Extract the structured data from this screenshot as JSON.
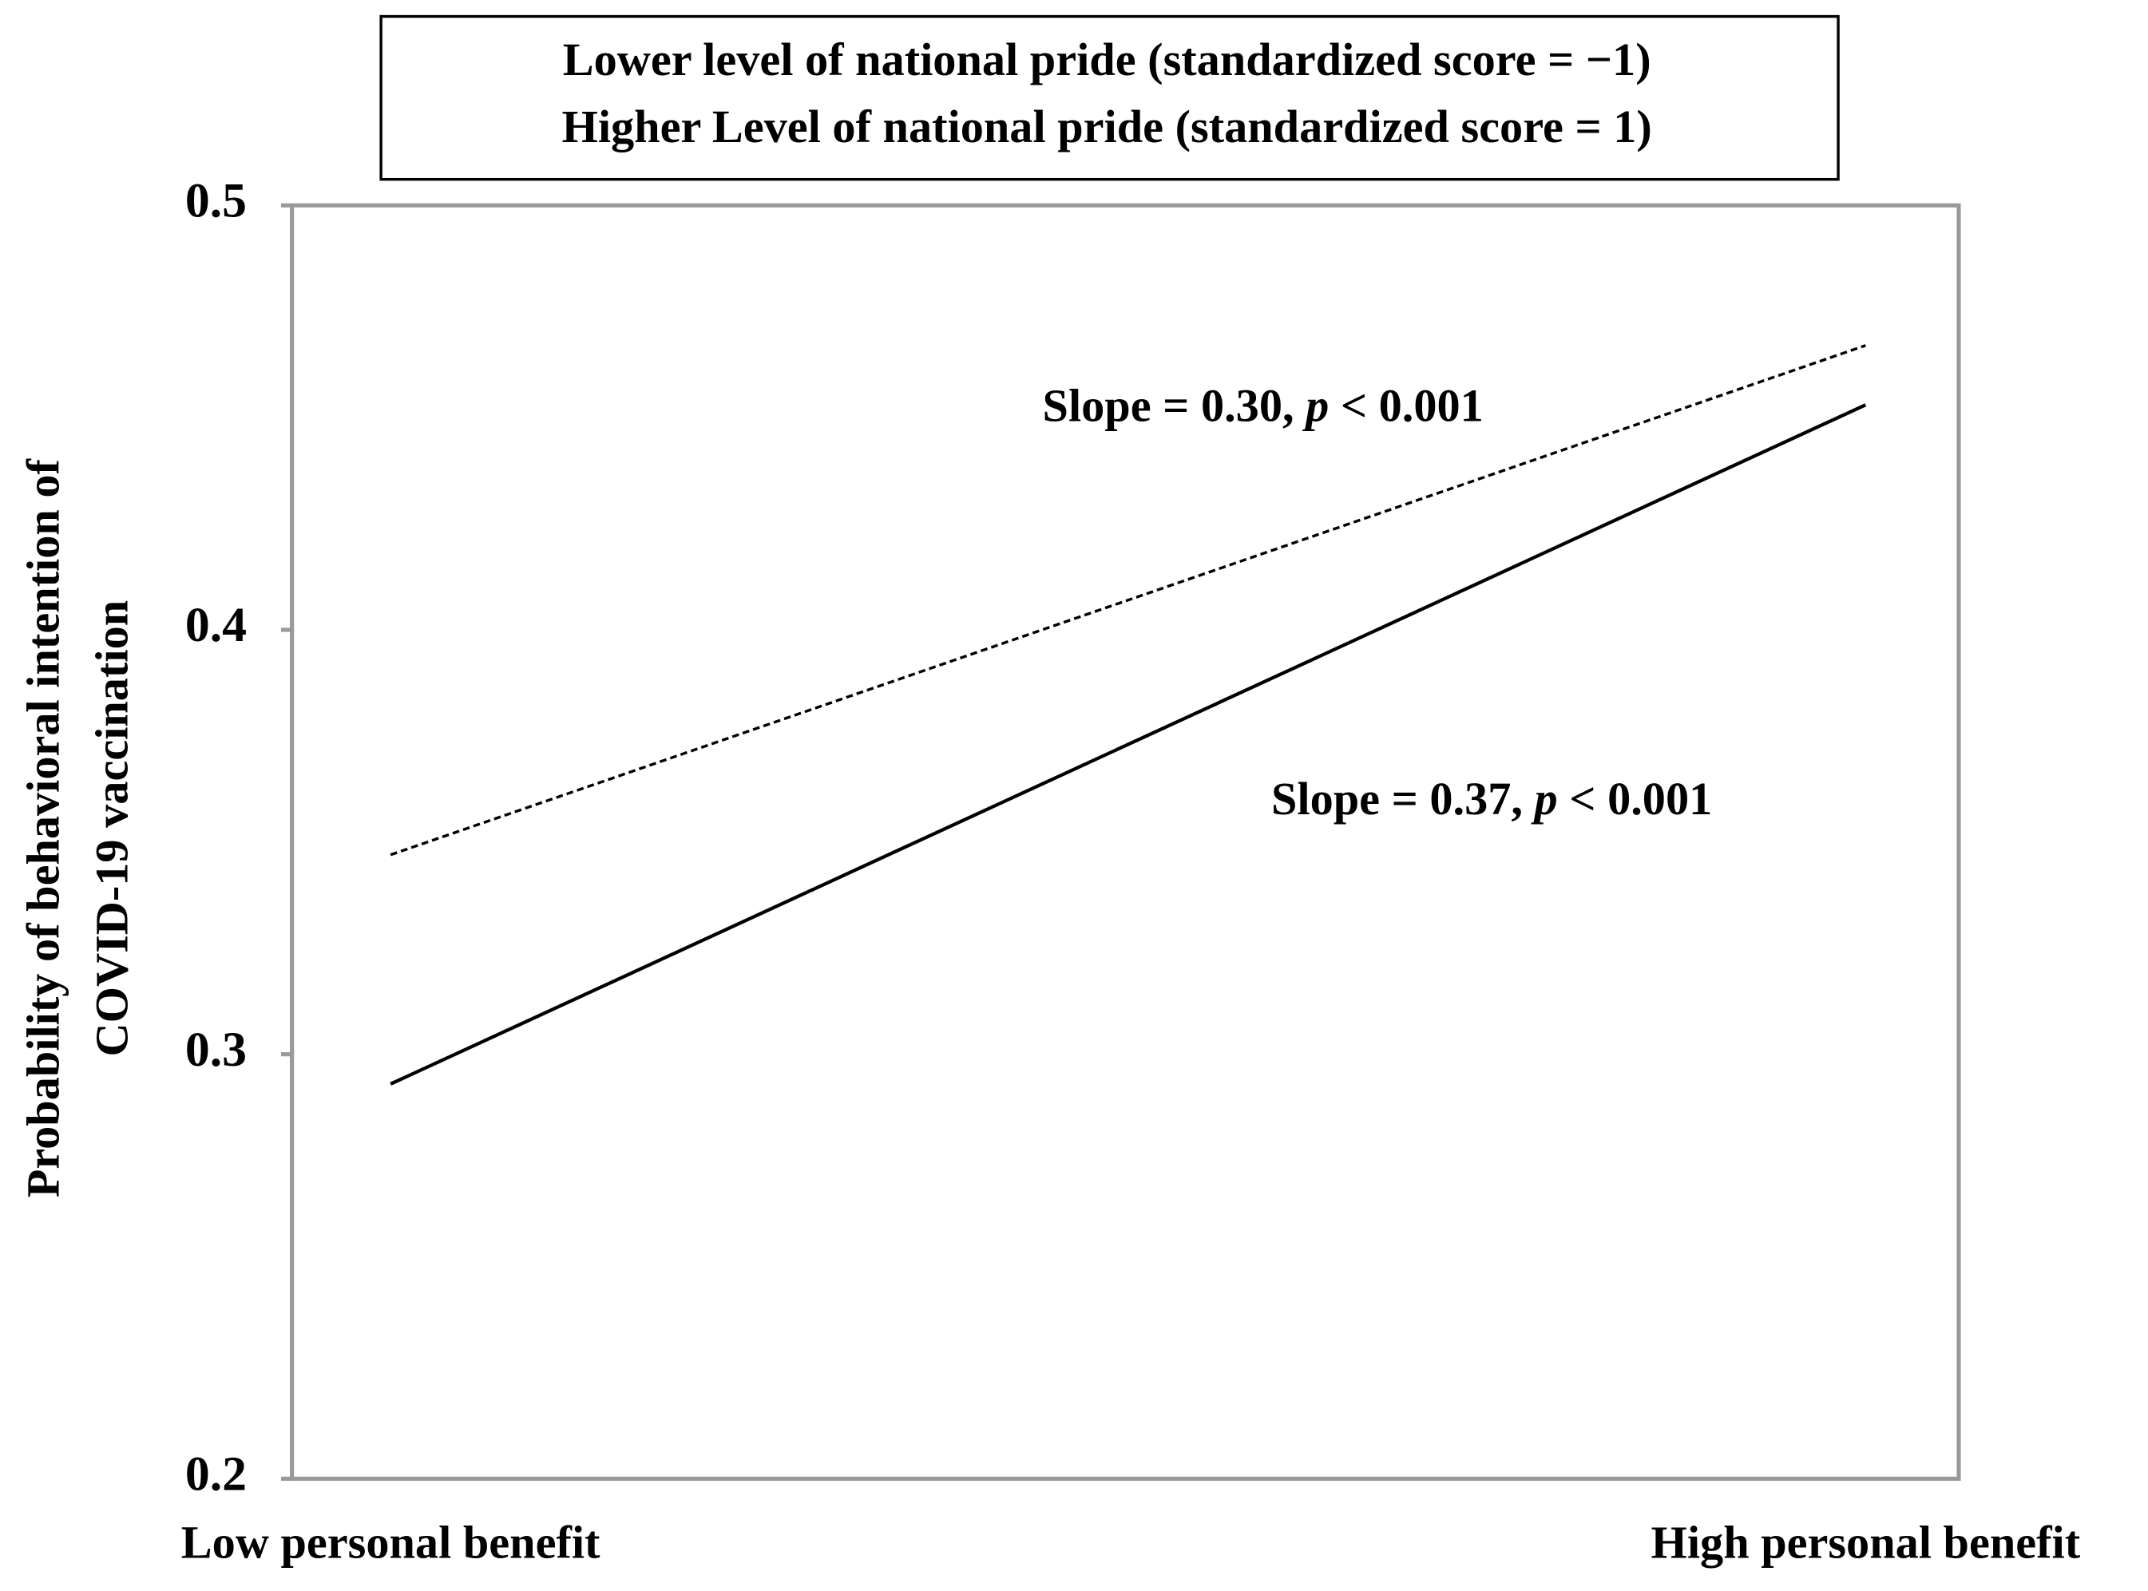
{
  "chart_data": {
    "type": "line",
    "legend_title_lines": [
      "Lower level of national pride (standardized score = −1)",
      "Higher Level of national pride (standardized score = 1)"
    ],
    "y_label": [
      "Probability of behavioral intention of",
      "COVID-19 vaccination"
    ],
    "categories": [
      "Low personal benefit",
      "High personal benefit"
    ],
    "series": [
      {
        "name": "Lower level of national pride (standardized score = −1)",
        "color": "#000000",
        "dashed": false,
        "values": [
          0.293,
          0.453
        ]
      },
      {
        "name": "Higher Level of national pride (standardized score = 1)",
        "color": "#000000",
        "dashed": true,
        "values": [
          0.347,
          0.467
        ]
      }
    ],
    "annotations": [
      "Slope = 0.30, p < 0.001",
      "Slope = 0.37, p < 0.001"
    ],
    "ylim": [
      0.2,
      0.5
    ],
    "yticks": [
      0.2,
      0.3,
      0.4,
      0.5
    ],
    "grid": false
  }
}
